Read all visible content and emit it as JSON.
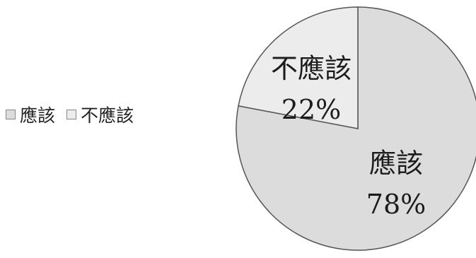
{
  "chart_data": {
    "type": "pie",
    "labels": [
      "應該",
      "不應該"
    ],
    "values": [
      78,
      22
    ],
    "value_labels": [
      "78%",
      "22%"
    ],
    "colors": [
      "#dcdcdc",
      "#ececec"
    ],
    "legend_position": "left",
    "start_angle_deg": 0
  },
  "legend": {
    "items": [
      {
        "label": "應該",
        "color": "#dcdcdc"
      },
      {
        "label": "不應該",
        "color": "#ececec"
      }
    ]
  }
}
